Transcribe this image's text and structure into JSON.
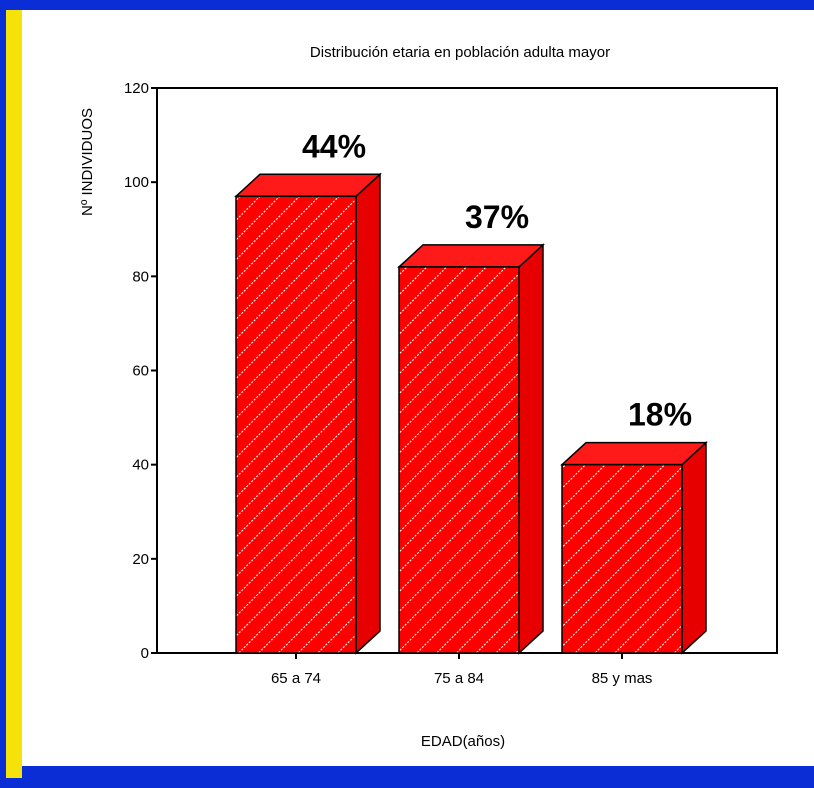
{
  "colors": {
    "frame": "#0a2dd6",
    "accent": "#f5e20a",
    "bar_front": "#ff0000",
    "bar_side": "#e60000",
    "bar_top": "#ff1a1a",
    "hatch": "#ffffff"
  },
  "chart_data": {
    "type": "bar",
    "style": "3d-hatched",
    "title": "Distribución etaria en población adulta mayor",
    "xlabel": "EDAD(años)",
    "ylabel": "Nº INDIVIDUOS",
    "ylim": [
      0,
      120
    ],
    "yticks": [
      0,
      20,
      40,
      60,
      80,
      100,
      120
    ],
    "categories": [
      "65 a 74",
      "75 a 84",
      "85 y mas"
    ],
    "values": [
      97,
      82,
      40
    ],
    "data_labels": [
      "44%",
      "37%",
      "18%"
    ],
    "grid": false,
    "legend": "none"
  }
}
